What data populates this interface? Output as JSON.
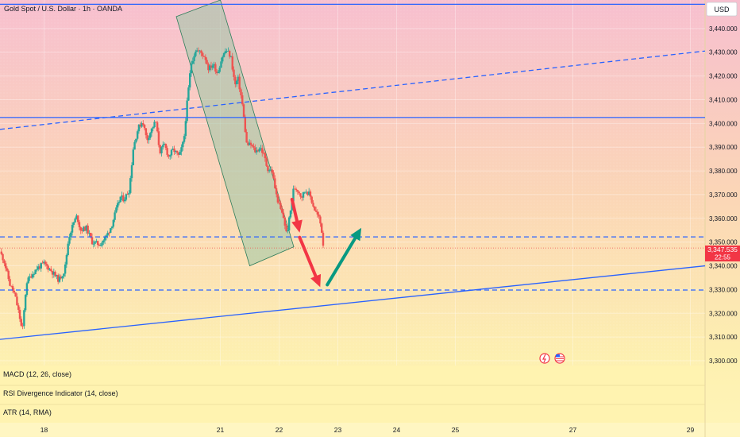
{
  "header": {
    "symbol_title": "Gold Spot / U.S. Dollar · 1h · OANDA",
    "currency": "USD"
  },
  "price_tag": {
    "price": "3,347.535",
    "countdown": "22:55"
  },
  "indicators": [
    {
      "label": "MACD (12, 26, close)"
    },
    {
      "label": "RSI Divergence Indicator (14, close)"
    },
    {
      "label": "ATR (14, RMA)"
    }
  ],
  "colors": {
    "bull": "#26a69a",
    "bear": "#ef5350",
    "line_blue": "#2962ff",
    "arrow_red": "#f23645",
    "arrow_green": "#089981",
    "channel_fill": "#9bc7a6",
    "price_tag": "#f23645"
  },
  "chart_data": {
    "type": "candlestick",
    "y_axis": {
      "range": [
        3298,
        3452
      ],
      "ticks": [
        3300,
        3310,
        3320,
        3330,
        3340,
        3350,
        3360,
        3370,
        3380,
        3390,
        3400,
        3410,
        3420,
        3430,
        3440
      ],
      "tick_labels": [
        "3,300.000",
        "3,310.000",
        "3,320.000",
        "3,330.000",
        "3,340.000",
        "3,350.000",
        "3,360.000",
        "3,370.000",
        "3,380.000",
        "3,390.000",
        "3,400.000",
        "3,410.000",
        "3,420.000",
        "3,430.000",
        "3,440.000"
      ]
    },
    "x_axis": {
      "range": [
        17.25,
        29.25
      ],
      "ticks": [
        18,
        21,
        22,
        23,
        24,
        25,
        27,
        29
      ],
      "tick_labels": [
        "18",
        "21",
        "22",
        "23",
        "24",
        "25",
        "27",
        "29"
      ]
    },
    "anchors": [
      [
        17.25,
        3346
      ],
      [
        17.32,
        3342
      ],
      [
        17.42,
        3332
      ],
      [
        17.5,
        3328
      ],
      [
        17.58,
        3319
      ],
      [
        17.63,
        3312
      ],
      [
        17.7,
        3333
      ],
      [
        17.78,
        3336
      ],
      [
        17.88,
        3339
      ],
      [
        18.0,
        3341
      ],
      [
        18.12,
        3338
      ],
      [
        18.25,
        3334
      ],
      [
        18.35,
        3338
      ],
      [
        18.42,
        3352
      ],
      [
        18.5,
        3358
      ],
      [
        18.56,
        3361
      ],
      [
        18.62,
        3355
      ],
      [
        18.72,
        3356
      ],
      [
        18.82,
        3350
      ],
      [
        18.95,
        3349
      ],
      [
        19.05,
        3352
      ],
      [
        19.15,
        3357
      ],
      [
        19.22,
        3363
      ],
      [
        19.3,
        3369
      ],
      [
        19.36,
        3368
      ],
      [
        19.45,
        3372
      ],
      [
        19.52,
        3390
      ],
      [
        19.6,
        3398
      ],
      [
        19.68,
        3401
      ],
      [
        19.75,
        3393
      ],
      [
        19.82,
        3397
      ],
      [
        19.9,
        3401
      ],
      [
        19.97,
        3388
      ],
      [
        20.05,
        3391
      ],
      [
        20.12,
        3386
      ],
      [
        20.2,
        3389
      ],
      [
        20.3,
        3386
      ],
      [
        20.38,
        3393
      ],
      [
        20.42,
        3405
      ],
      [
        20.5,
        3425
      ],
      [
        20.58,
        3431
      ],
      [
        20.66,
        3430
      ],
      [
        20.74,
        3428
      ],
      [
        20.8,
        3423
      ],
      [
        20.88,
        3425
      ],
      [
        20.95,
        3421
      ],
      [
        21.03,
        3428
      ],
      [
        21.1,
        3431
      ],
      [
        21.18,
        3428
      ],
      [
        21.25,
        3416
      ],
      [
        21.3,
        3419
      ],
      [
        21.37,
        3409
      ],
      [
        21.45,
        3391
      ],
      [
        21.52,
        3391
      ],
      [
        21.6,
        3388
      ],
      [
        21.68,
        3390
      ],
      [
        21.75,
        3386
      ],
      [
        21.8,
        3381
      ],
      [
        21.88,
        3380
      ],
      [
        21.95,
        3370
      ],
      [
        22.02,
        3364
      ],
      [
        22.08,
        3360
      ],
      [
        22.13,
        3353
      ],
      [
        22.2,
        3364
      ],
      [
        22.25,
        3373
      ],
      [
        22.32,
        3372
      ],
      [
        22.38,
        3369
      ],
      [
        22.45,
        3372
      ],
      [
        22.52,
        3370
      ],
      [
        22.6,
        3364
      ],
      [
        22.68,
        3360
      ],
      [
        22.72,
        3356
      ],
      [
        22.75,
        3349
      ]
    ],
    "overlays": {
      "horizontal_lines": [
        {
          "price": 3450.2,
          "style": "solid"
        },
        {
          "price": 3402.5,
          "style": "solid"
        },
        {
          "price": 3352.2,
          "style": "dashed"
        },
        {
          "price": 3329.8,
          "style": "dashed"
        }
      ],
      "trend_lines": [
        {
          "points": [
            [
              17.25,
              3309
            ],
            [
              29.25,
              3340
            ]
          ],
          "style": "solid"
        },
        {
          "points": [
            [
              17.25,
              3397.5
            ],
            [
              29.25,
              3430.5
            ]
          ],
          "style": "dashed"
        }
      ],
      "channel": [
        [
          20.25,
          3445
        ],
        [
          21.0,
          3452
        ],
        [
          22.25,
          3348
        ],
        [
          21.5,
          3340
        ]
      ],
      "arrows": [
        {
          "from": [
            22.22,
            3368
          ],
          "to": [
            22.35,
            3354
          ],
          "color": "red"
        },
        {
          "from": [
            22.35,
            3352
          ],
          "to": [
            22.7,
            3331
          ],
          "color": "red"
        },
        {
          "from": [
            22.82,
            3332
          ],
          "to": [
            23.4,
            3356
          ],
          "color": "green"
        }
      ]
    }
  }
}
